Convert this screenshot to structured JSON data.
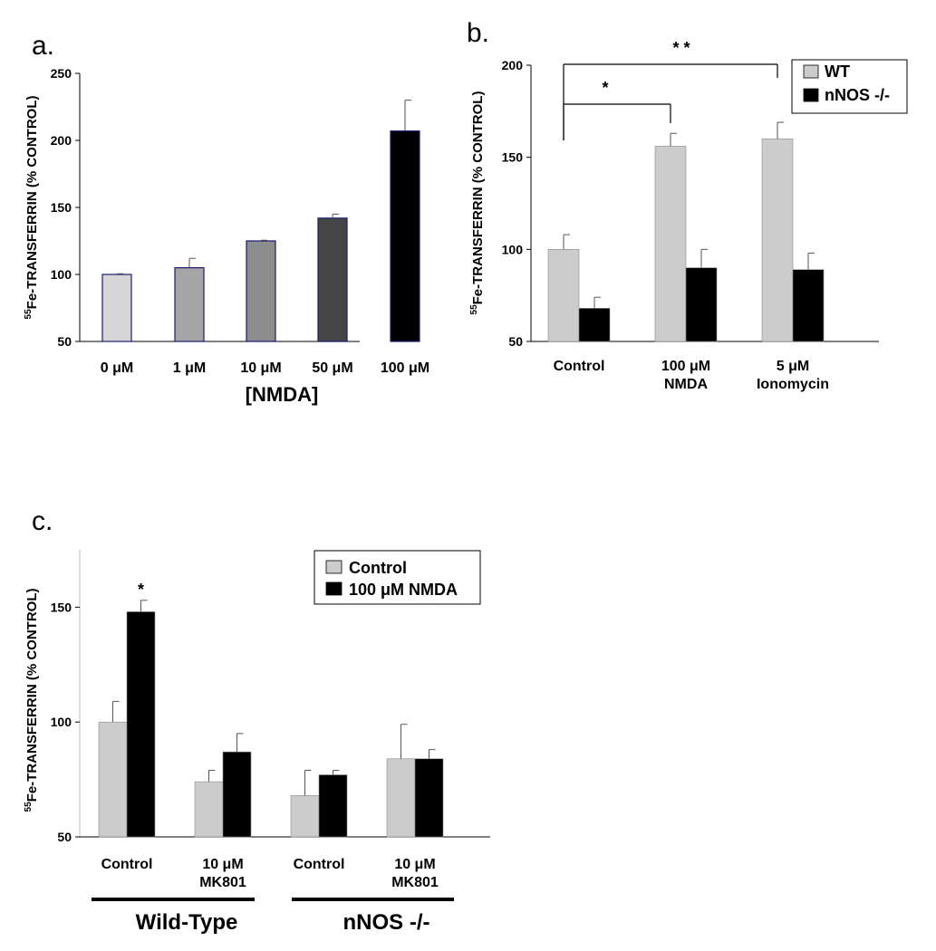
{
  "chart_data": [
    {
      "type": "bar",
      "panel_label": "a.",
      "ylabel_sup": "55",
      "ylabel": "Fe-TRANSFERRIN (% CONTROL)",
      "xlabel": "[NMDA]",
      "ylim": [
        50,
        250
      ],
      "yticks": [
        "50",
        "100",
        "150",
        "200",
        "250"
      ],
      "categories": [
        "0 μM",
        "1 μM",
        "10 μM",
        "50 μM",
        "100 μM"
      ],
      "values": [
        100,
        105,
        125,
        142,
        207
      ],
      "errors": [
        0.5,
        7,
        0.5,
        3,
        23
      ],
      "colors": [
        "#d6d6d6",
        "#a6a6a6",
        "#8d8d8d",
        "#454545",
        "#000000"
      ]
    },
    {
      "type": "bar",
      "panel_label": "b.",
      "ylabel_sup": "55",
      "ylabel": "Fe-TRANSFERRIN (% CONTROL)",
      "ylim": [
        50,
        200
      ],
      "yticks": [
        "50",
        "100",
        "150",
        "200"
      ],
      "categories": [
        [
          "Control"
        ],
        [
          "100 μM",
          "NMDA"
        ],
        [
          "5 μM",
          "Ionomycin"
        ]
      ],
      "series": [
        {
          "name": "WT",
          "color": "#cccccc",
          "values": [
            100,
            156,
            160
          ],
          "errors": [
            8,
            7,
            9
          ]
        },
        {
          "name": "nNOS -/-",
          "color": "#000000",
          "values": [
            68,
            90,
            89
          ],
          "errors": [
            6,
            10,
            9
          ]
        }
      ],
      "legend": "top-right",
      "significance": [
        {
          "from": 0,
          "to": 1,
          "label": "*"
        },
        {
          "from": 0,
          "to": 2,
          "label": "* *"
        }
      ]
    },
    {
      "type": "bar",
      "panel_label": "c.",
      "ylabel_sup": "55",
      "ylabel": "Fe-TRANSFERRIN (% CONTROL)",
      "ylim": [
        50,
        175
      ],
      "yticks": [
        "50",
        "100",
        "150"
      ],
      "categories": [
        [
          "Control"
        ],
        [
          "10 μM",
          "MK801"
        ],
        [
          "Control"
        ],
        [
          "10 μM",
          "MK801"
        ]
      ],
      "series": [
        {
          "name": "Control",
          "color": "#cccccc",
          "values": [
            100,
            74,
            68,
            84
          ],
          "errors": [
            9,
            5,
            11,
            15
          ]
        },
        {
          "name": "100 μM NMDA",
          "color": "#000000",
          "values": [
            148,
            87,
            77,
            84
          ],
          "errors": [
            5,
            8,
            2,
            4
          ]
        }
      ],
      "legend": "top-right",
      "star_labels": [
        {
          "category": 0,
          "series": 1,
          "label": "*"
        }
      ],
      "groups": [
        {
          "label": "Wild-Type",
          "categories": [
            0,
            1
          ]
        },
        {
          "label": "nNOS -/-",
          "categories": [
            2,
            3
          ]
        }
      ]
    }
  ]
}
